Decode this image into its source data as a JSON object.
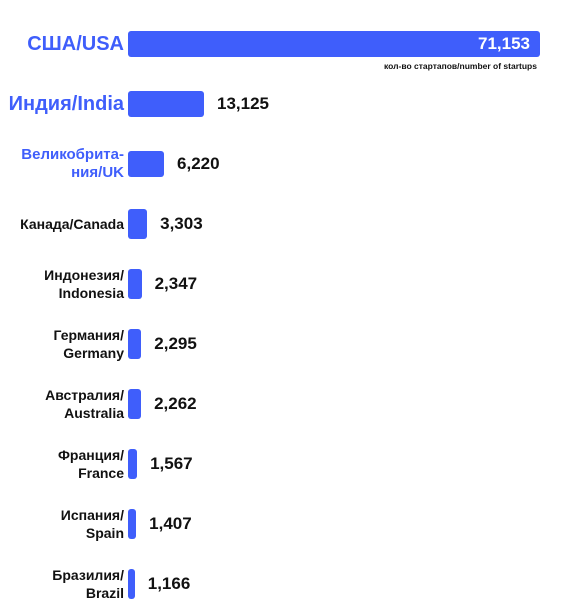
{
  "chart_data": {
    "type": "hbar",
    "categories": [
      "США/USA",
      "Индия/India",
      "Великобрита-\nния/UK",
      "Канада/Canada",
      "Индонезия/\nIndonesia",
      "Германия/\nGermany",
      "Австралия/\nAustralia",
      "Франция/\nFrance",
      "Испания/\nSpain",
      "Бразилия/\nBrazil"
    ],
    "values": [
      71153,
      13125,
      6220,
      3303,
      2347,
      2295,
      2262,
      1567,
      1407,
      1166
    ],
    "value_labels": [
      "71,153",
      "13,125",
      "6,220",
      "3,303",
      "2,347",
      "2,295",
      "2,262",
      "1,567",
      "1,407",
      "1,166"
    ],
    "color": "#3f5efb",
    "label_colors": [
      "#3f5efb",
      "#3f5efb",
      "#3f5efb",
      "#111111",
      "#111111",
      "#111111",
      "#111111",
      "#111111",
      "#111111",
      "#111111"
    ],
    "annotation": "кол-во стартапов/number of startups"
  }
}
